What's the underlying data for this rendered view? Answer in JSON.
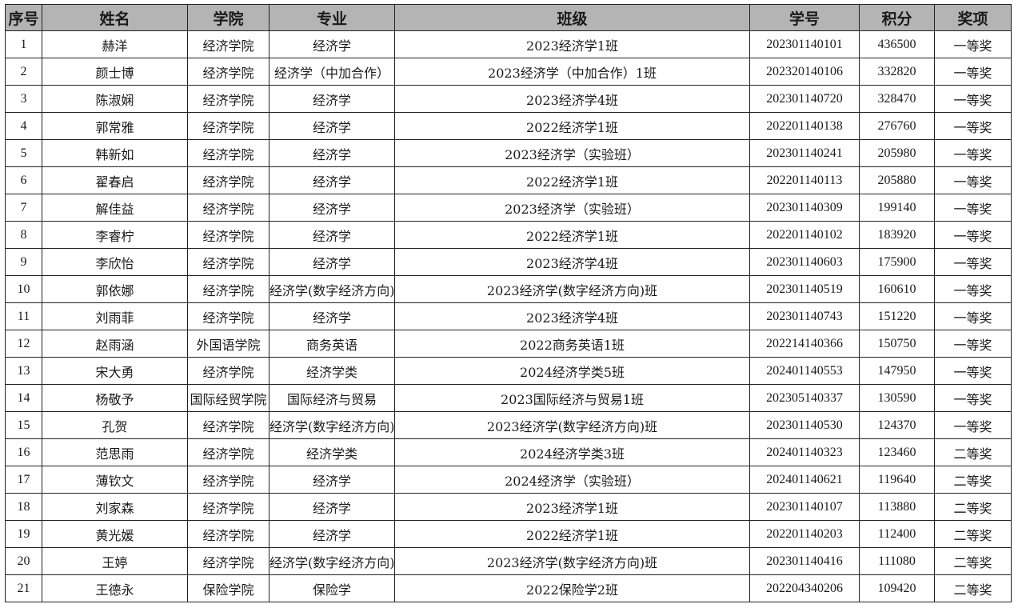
{
  "headers": [
    "序号",
    "姓名",
    "学院",
    "专业",
    "班级",
    "学号",
    "积分",
    "奖项"
  ],
  "rows": [
    [
      "1",
      "赫洋",
      "经济学院",
      "经济学",
      "2023经济学1班",
      "202301140101",
      "436500",
      "一等奖"
    ],
    [
      "2",
      "颜士博",
      "经济学院",
      "经济学（中加合作）",
      "2023经济学（中加合作）1班",
      "202320140106",
      "332820",
      "一等奖"
    ],
    [
      "3",
      "陈淑娴",
      "经济学院",
      "经济学",
      "2023经济学4班",
      "202301140720",
      "328470",
      "一等奖"
    ],
    [
      "4",
      "郭常雅",
      "经济学院",
      "经济学",
      "2022经济学1班",
      "202201140138",
      "276760",
      "一等奖"
    ],
    [
      "5",
      "韩新如",
      "经济学院",
      "经济学",
      "2023经济学（实验班）",
      "202301140241",
      "205980",
      "一等奖"
    ],
    [
      "6",
      "翟春启",
      "经济学院",
      "经济学",
      "2022经济学1班",
      "202201140113",
      "205880",
      "一等奖"
    ],
    [
      "7",
      "解佳益",
      "经济学院",
      "经济学",
      "2023经济学（实验班）",
      "202301140309",
      "199140",
      "一等奖"
    ],
    [
      "8",
      "李睿柠",
      "经济学院",
      "经济学",
      "2022经济学1班",
      "202201140102",
      "183920",
      "一等奖"
    ],
    [
      "9",
      "李欣怡",
      "经济学院",
      "经济学",
      "2023经济学4班",
      "202301140603",
      "175900",
      "一等奖"
    ],
    [
      "10",
      "郭依娜",
      "经济学院",
      "经济学(数字经济方向)",
      "2023经济学(数字经济方向)班",
      "202301140519",
      "160610",
      "一等奖"
    ],
    [
      "11",
      "刘雨菲",
      "经济学院",
      "经济学",
      "2023经济学4班",
      "202301140743",
      "151220",
      "一等奖"
    ],
    [
      "12",
      "赵雨涵",
      "外国语学院",
      "商务英语",
      "2022商务英语1班",
      "202214140366",
      "150750",
      "一等奖"
    ],
    [
      "13",
      "宋大勇",
      "经济学院",
      "经济学类",
      "2024经济学类5班",
      "202401140553",
      "147950",
      "一等奖"
    ],
    [
      "14",
      "杨敬予",
      "国际经贸学院",
      "国际经济与贸易",
      "2023国际经济与贸易1班",
      "202305140337",
      "130590",
      "一等奖"
    ],
    [
      "15",
      "孔贺",
      "经济学院",
      "经济学(数字经济方向)",
      "2023经济学(数字经济方向)班",
      "202301140530",
      "124370",
      "一等奖"
    ],
    [
      "16",
      "范思雨",
      "经济学院",
      "经济学类",
      "2024经济学类3班",
      "202401140323",
      "123460",
      "二等奖"
    ],
    [
      "17",
      "薄钦文",
      "经济学院",
      "经济学",
      "2024经济学（实验班）",
      "202401140621",
      "119640",
      "二等奖"
    ],
    [
      "18",
      "刘家森",
      "经济学院",
      "经济学",
      "2023经济学1班",
      "202301140107",
      "113880",
      "二等奖"
    ],
    [
      "19",
      "黄光媛",
      "经济学院",
      "经济学",
      "2022经济学1班",
      "202201140203",
      "112400",
      "二等奖"
    ],
    [
      "20",
      "王婷",
      "经济学院",
      "经济学(数字经济方向)",
      "2023经济学(数字经济方向)班",
      "202301140416",
      "111080",
      "二等奖"
    ],
    [
      "21",
      "王德永",
      "保险学院",
      "保险学",
      "2022保险学2班",
      "202204340206",
      "109420",
      "二等奖"
    ]
  ],
  "colors": {
    "header_bg": "#b4b4b4",
    "border": "#222222"
  }
}
